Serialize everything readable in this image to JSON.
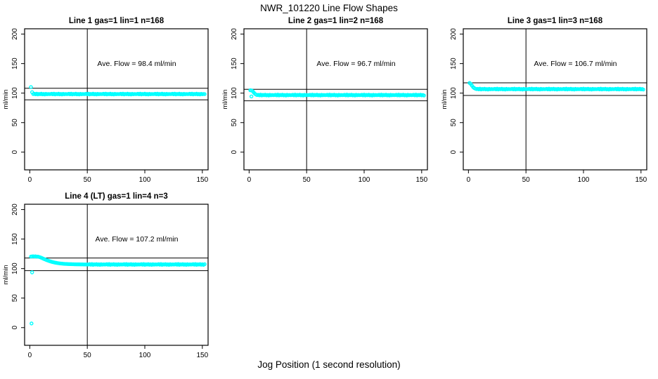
{
  "title": "NWR_101220  Line Flow Shapes",
  "xlabel": "Jog Position (1 second resolution)",
  "colors": {
    "point": "#00FFFF",
    "axis": "#000000",
    "background": "#FFFFFF"
  },
  "chart_data": [
    {
      "type": "scatter",
      "title": "Line 1 gas=1 lin=1 n=168",
      "ylabel": "ml/min",
      "annotation": "Ave. Flow =  98.4  ml/min",
      "ave_flow": 98.4,
      "x_ticks": [
        0,
        50,
        100,
        150
      ],
      "y_ticks": [
        0,
        50,
        100,
        150,
        200
      ],
      "xlim": [
        -4.5,
        155
      ],
      "ylim": [
        -30,
        209
      ],
      "vline_x": 50,
      "ref_lines": [
        108.2,
        88.6
      ],
      "x_start": 1,
      "x_step": 1,
      "y": [
        110.2,
        101.6,
        98.4,
        98.9,
        98.0,
        99.1,
        97.8,
        98.7,
        98.2,
        99.0,
        97.9,
        98.6,
        97.7,
        98.8,
        98.1,
        98.5,
        98.3,
        98.4,
        98.9,
        98.0,
        99.1,
        97.8,
        98.7,
        98.2,
        99.0,
        97.9,
        98.6,
        97.7,
        98.8,
        98.1,
        98.5,
        98.3,
        98.4,
        98.9,
        98.0,
        99.1,
        97.8,
        98.7,
        98.2,
        99.0,
        97.9,
        98.6,
        97.7,
        98.8,
        98.1,
        98.5,
        98.3,
        98.4,
        98.9,
        98.0,
        99.1,
        97.8,
        98.7,
        98.2,
        99.0,
        97.9,
        98.6,
        97.7,
        98.8,
        98.1,
        98.5,
        98.3,
        98.4,
        98.9,
        98.0,
        99.1,
        97.8,
        98.7,
        98.2,
        99.0,
        97.9,
        98.6,
        97.7,
        98.8,
        98.1,
        98.5,
        98.3,
        98.4,
        98.9,
        98.0,
        99.1,
        97.8,
        98.7,
        98.2,
        99.0,
        97.9,
        98.6,
        97.7,
        98.8,
        98.1,
        98.5,
        98.3,
        98.4,
        98.9,
        98.0,
        99.1,
        97.8,
        98.7,
        98.2,
        99.0,
        97.9,
        98.6,
        97.7,
        98.8,
        98.1,
        98.5,
        98.3,
        98.4,
        98.9,
        98.0,
        99.1,
        97.8,
        98.7,
        98.2,
        99.0,
        97.9,
        98.6,
        97.7,
        98.8,
        98.1,
        98.5,
        98.3,
        98.4,
        98.9,
        98.0,
        99.1,
        97.8,
        98.7,
        98.2,
        99.0,
        97.9,
        98.6,
        97.7,
        98.8,
        98.1,
        98.5,
        98.3,
        98.4,
        98.9,
        98.0,
        99.1,
        97.8,
        98.7,
        98.2,
        99.0,
        97.9,
        98.6,
        97.7,
        98.8,
        98.1,
        98.5,
        98.3
      ],
      "extra_points": []
    },
    {
      "type": "scatter",
      "title": "Line 2 gas=1 lin=2 n=168",
      "ylabel": "ml/min",
      "annotation": "Ave. Flow =  96.7  ml/min",
      "ave_flow": 96.7,
      "x_ticks": [
        0,
        50,
        100,
        150
      ],
      "y_ticks": [
        0,
        50,
        100,
        150,
        200
      ],
      "xlim": [
        -4.5,
        155
      ],
      "ylim": [
        -30,
        209
      ],
      "vline_x": 50,
      "ref_lines": [
        106.4,
        87.0
      ],
      "x_start": 1,
      "x_step": 1,
      "y": [
        104.9,
        104.5,
        103.6,
        101.2,
        99.0,
        97.6,
        96.7,
        97.2,
        96.3,
        97.4,
        96.1,
        97.0,
        96.5,
        97.3,
        96.2,
        96.9,
        96.0,
        97.1,
        96.4,
        96.8,
        96.6,
        96.7,
        97.2,
        96.3,
        97.4,
        96.1,
        97.0,
        96.5,
        97.3,
        96.2,
        96.9,
        96.0,
        97.1,
        96.4,
        96.8,
        96.6,
        96.7,
        97.2,
        96.3,
        97.4,
        96.1,
        97.0,
        96.5,
        97.3,
        96.2,
        96.9,
        96.0,
        97.1,
        96.4,
        96.8,
        96.6,
        96.7,
        97.2,
        96.3,
        97.4,
        96.1,
        97.0,
        96.5,
        97.3,
        96.2,
        96.9,
        96.0,
        97.1,
        96.4,
        96.8,
        96.6,
        96.7,
        97.2,
        96.3,
        97.4,
        96.1,
        97.0,
        96.5,
        97.3,
        96.2,
        96.9,
        96.0,
        97.1,
        96.4,
        96.8,
        96.6,
        96.7,
        97.2,
        96.3,
        97.4,
        96.1,
        97.0,
        96.5,
        97.3,
        96.2,
        96.9,
        96.0,
        97.1,
        96.4,
        96.8,
        96.6,
        96.7,
        97.2,
        96.3,
        97.4,
        96.1,
        97.0,
        96.5,
        97.3,
        96.2,
        96.9,
        96.0,
        97.1,
        96.4,
        96.8,
        96.6,
        96.7,
        97.2,
        96.3,
        97.4,
        96.1,
        97.0,
        96.5,
        97.3,
        96.2,
        96.9,
        96.0,
        97.1,
        96.4,
        96.8,
        96.6,
        96.7,
        97.2,
        96.3,
        97.4,
        96.1,
        97.0,
        96.5,
        97.3,
        96.2,
        96.9,
        96.0,
        97.1,
        96.4,
        96.8,
        96.6,
        96.7,
        97.2,
        96.3,
        97.4,
        96.1,
        97.0,
        96.5,
        97.3,
        96.2,
        96.9,
        96.0
      ],
      "extra_points": [
        [
          2,
          94.3
        ]
      ]
    },
    {
      "type": "scatter",
      "title": "Line 3 gas=1 lin=3 n=168",
      "ylabel": "ml/min",
      "annotation": "Ave. Flow =  106.7  ml/min",
      "ave_flow": 106.7,
      "x_ticks": [
        0,
        50,
        100,
        150
      ],
      "y_ticks": [
        0,
        50,
        100,
        150,
        200
      ],
      "xlim": [
        -4.5,
        155
      ],
      "ylim": [
        -30,
        209
      ],
      "vline_x": 50,
      "ref_lines": [
        117.4,
        96.0
      ],
      "x_start": 1,
      "x_step": 1,
      "y": [
        117.2,
        115.6,
        112.8,
        110.2,
        108.6,
        107.5,
        106.8,
        107.3,
        106.4,
        107.5,
        106.2,
        107.1,
        106.6,
        107.4,
        106.3,
        107.0,
        106.1,
        107.2,
        106.5,
        106.9,
        106.7,
        106.8,
        107.3,
        106.4,
        107.5,
        106.2,
        107.1,
        106.6,
        107.4,
        106.3,
        107.0,
        106.1,
        107.2,
        106.5,
        106.9,
        106.7,
        106.8,
        107.3,
        106.4,
        107.5,
        106.2,
        107.1,
        106.6,
        107.4,
        106.3,
        107.0,
        106.1,
        107.2,
        106.5,
        106.9,
        106.7,
        106.8,
        107.3,
        106.4,
        107.5,
        106.2,
        107.1,
        106.6,
        107.4,
        106.3,
        107.0,
        106.1,
        107.2,
        106.5,
        106.9,
        106.7,
        106.8,
        107.3,
        106.4,
        107.5,
        106.2,
        107.1,
        106.6,
        107.4,
        106.3,
        107.0,
        106.1,
        107.2,
        106.5,
        106.9,
        106.7,
        106.8,
        107.3,
        106.4,
        107.5,
        106.2,
        107.1,
        106.6,
        107.4,
        106.3,
        107.0,
        106.1,
        107.2,
        106.5,
        106.9,
        106.7,
        106.8,
        107.3,
        106.4,
        107.5,
        106.2,
        107.1,
        106.6,
        107.4,
        106.3,
        107.0,
        106.1,
        107.2,
        106.5,
        106.9,
        106.7,
        106.8,
        107.3,
        106.4,
        107.5,
        106.2,
        107.1,
        106.6,
        107.4,
        106.3,
        107.0,
        106.1,
        107.2,
        106.5,
        106.9,
        106.7,
        106.8,
        107.3,
        106.4,
        107.5,
        106.2,
        107.1,
        106.6,
        107.4,
        106.3,
        107.0,
        106.1,
        107.2,
        106.5,
        106.9,
        106.7,
        106.8,
        107.3,
        106.4,
        107.5,
        106.2,
        107.1,
        106.6,
        107.4,
        106.3,
        107.0,
        106.1
      ],
      "extra_points": []
    },
    {
      "type": "scatter",
      "title": "Line 4 (LT) gas=1 lin=4 n=3",
      "ylabel": "ml/min",
      "annotation": "Ave. Flow =  107.2  ml/min",
      "ave_flow": 107.2,
      "x_ticks": [
        0,
        50,
        100,
        150
      ],
      "y_ticks": [
        0,
        50,
        100,
        150,
        200
      ],
      "xlim": [
        -4.5,
        155
      ],
      "ylim": [
        -30,
        209
      ],
      "vline_x": 50,
      "ref_lines": [
        117.9,
        96.5
      ],
      "x_start": 1,
      "x_step": 1,
      "y": [
        120.3,
        120.6,
        120.8,
        120.5,
        120.7,
        120.2,
        120.4,
        119.8,
        119.2,
        118.4,
        117.5,
        116.6,
        115.7,
        114.9,
        114.1,
        113.4,
        112.7,
        112.1,
        111.5,
        111.0,
        110.5,
        110.1,
        109.7,
        109.4,
        109.1,
        108.8,
        108.6,
        108.4,
        108.2,
        108.0,
        107.9,
        107.8,
        107.7,
        107.6,
        107.5,
        107.5,
        107.4,
        107.4,
        107.3,
        107.3,
        107.2,
        107.2,
        107.2,
        107.1,
        107.1,
        107.1,
        107.0,
        107.0,
        107.0,
        107.0,
        107.0,
        107.5,
        106.6,
        107.7,
        106.4,
        107.3,
        106.8,
        107.6,
        106.5,
        107.2,
        106.3,
        107.4,
        106.7,
        107.1,
        106.9,
        107.0,
        107.5,
        106.6,
        107.7,
        106.4,
        107.3,
        106.8,
        107.6,
        106.5,
        107.2,
        106.3,
        107.4,
        106.7,
        107.1,
        106.9,
        107.0,
        107.5,
        106.6,
        107.7,
        106.4,
        107.3,
        106.8,
        107.6,
        106.5,
        107.2,
        106.3,
        107.4,
        106.7,
        107.1,
        106.9,
        107.0,
        107.5,
        106.6,
        107.7,
        106.4,
        107.3,
        106.8,
        107.6,
        106.5,
        107.2,
        106.3,
        107.4,
        106.7,
        107.1,
        106.9,
        107.0,
        107.5,
        106.6,
        107.7,
        106.4,
        107.3,
        106.8,
        107.6,
        106.5,
        107.2,
        106.3,
        107.4,
        106.7,
        107.1,
        106.9,
        107.0,
        107.5,
        106.6,
        107.7,
        106.4,
        107.3,
        106.8,
        107.6,
        106.5,
        107.2,
        106.3,
        107.4,
        106.7,
        107.1,
        106.9,
        107.0,
        107.5,
        106.6,
        107.7,
        106.4,
        107.3,
        106.8,
        107.6,
        106.5,
        107.2,
        106.3,
        107.4
      ],
      "extra_points": [
        [
          2,
          93.5
        ],
        [
          1.5,
          7
        ]
      ]
    }
  ]
}
